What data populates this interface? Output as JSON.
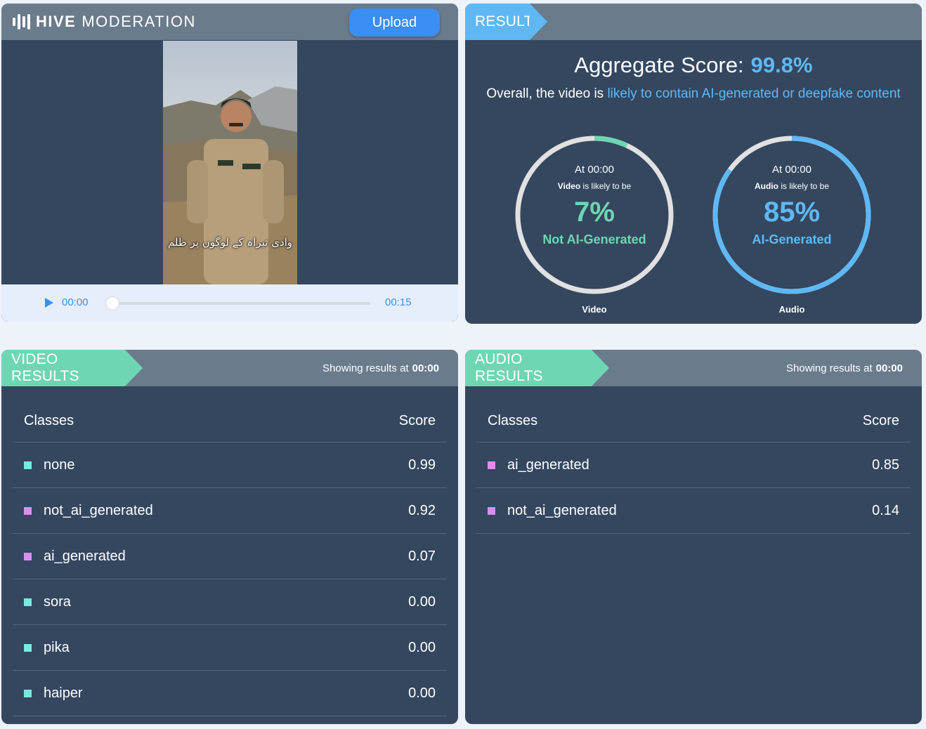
{
  "brand": {
    "bold": "HIVE",
    "light": "MODERATION",
    "logo_icon": "waveform-bars-icon"
  },
  "upload_label": "Upload",
  "video_overlay_caption": "وادی تیراہ کے لوگوں پر ظلم",
  "player": {
    "current": "00:00",
    "duration": "00:15",
    "progress": 0
  },
  "result": {
    "tag": "RESULT",
    "aggregate_label": "Aggregate Score:",
    "aggregate_value": "99.8%",
    "overall_prefix": "Overall, the video is ",
    "overall_highlight": "likely to contain AI-generated or deepfake content"
  },
  "rings": [
    {
      "at": "At 00:00",
      "subject": "Video",
      "likely": " is likely to be",
      "pct": "7%",
      "fraction": 0.07,
      "class": "Not AI-Generated",
      "caption": "Video",
      "color": "#6fd6b3"
    },
    {
      "at": "At 00:00",
      "subject": "Audio",
      "likely": " is likely to be",
      "pct": "85%",
      "fraction": 0.85,
      "class": "AI-Generated",
      "caption": "Audio",
      "color": "#5fb8f5"
    }
  ],
  "video_results": {
    "tag": "VIDEO RESULTS",
    "tag_color": "#6fd6b3",
    "showing_prefix": "Showing results at",
    "showing_time": "00:00",
    "col_classes": "Classes",
    "col_score": "Score",
    "rows": [
      {
        "label": "none",
        "score": "0.99",
        "color": "#7de8de"
      },
      {
        "label": "not_ai_generated",
        "score": "0.92",
        "color": "#d98ef0"
      },
      {
        "label": "ai_generated",
        "score": "0.07",
        "color": "#d98ef0"
      },
      {
        "label": "sora",
        "score": "0.00",
        "color": "#7de8de"
      },
      {
        "label": "pika",
        "score": "0.00",
        "color": "#7de8de"
      },
      {
        "label": "haiper",
        "score": "0.00",
        "color": "#7de8de"
      }
    ]
  },
  "audio_results": {
    "tag": "AUDIO RESULTS",
    "tag_color": "#6fd6b3",
    "showing_prefix": "Showing results at",
    "showing_time": "00:00",
    "col_classes": "Classes",
    "col_score": "Score",
    "rows": [
      {
        "label": "ai_generated",
        "score": "0.85",
        "color": "#d98ef0"
      },
      {
        "label": "not_ai_generated",
        "score": "0.14",
        "color": "#d98ef0"
      }
    ]
  }
}
